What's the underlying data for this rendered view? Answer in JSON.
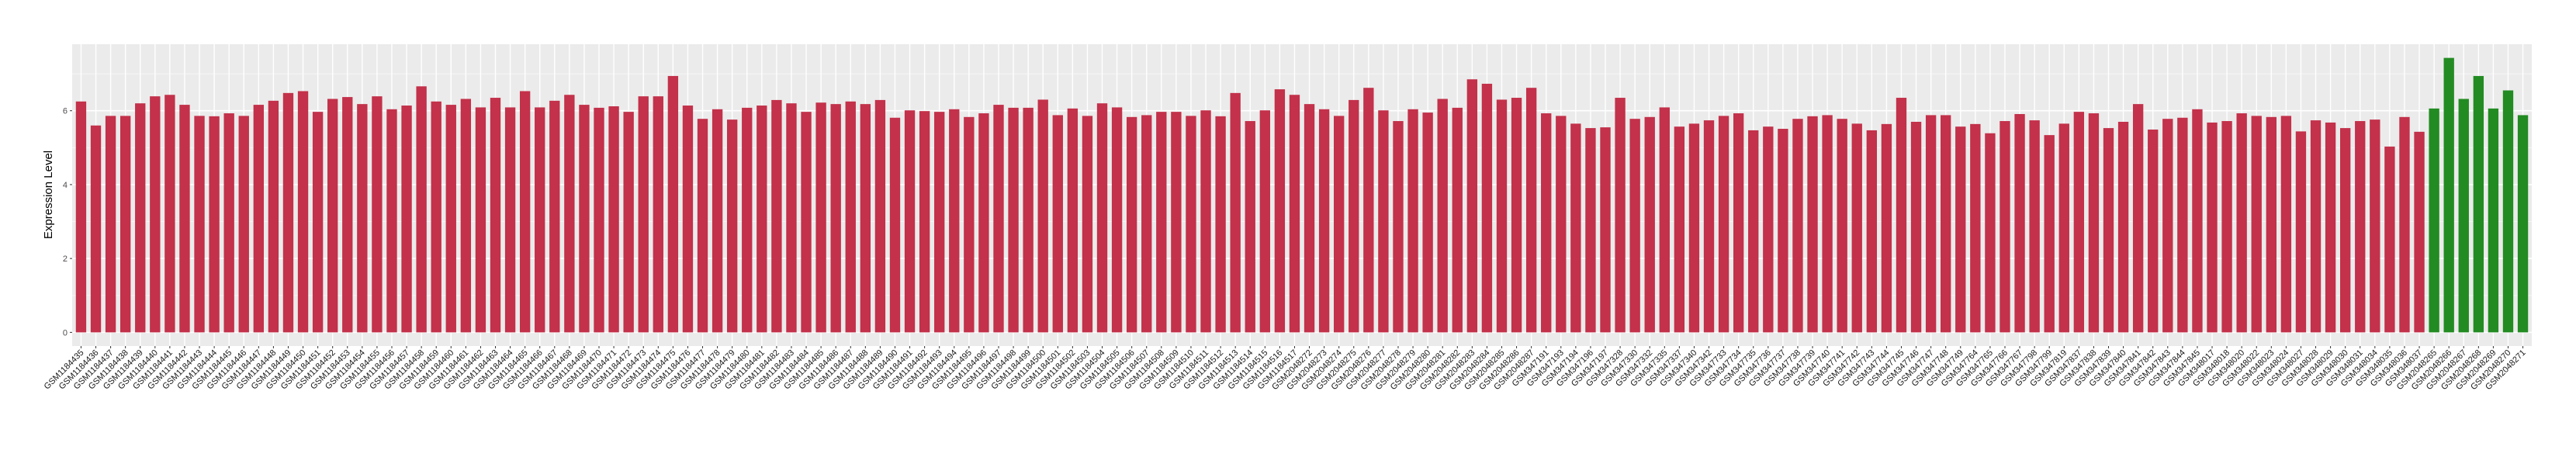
{
  "chart_data": {
    "type": "bar",
    "title": "",
    "xlabel": "",
    "ylabel": "Expression Level",
    "ylim": [
      -0.37,
      7.8
    ],
    "yticks": [
      0,
      2,
      4,
      6
    ],
    "grid": true,
    "legend": "none",
    "colors": {
      "default": "#C3314A",
      "highlight": "#228B22",
      "panel": "#EBEBEB",
      "grid": "#FFFFFF"
    },
    "highlighted_categories": [
      "GSM2048265",
      "GSM2048266",
      "GSM2048267",
      "GSM2048268",
      "GSM2048269",
      "GSM2048270",
      "GSM2048271"
    ],
    "categories": [
      "GSM1184435",
      "GSM1184436",
      "GSM1184437",
      "GSM1184438",
      "GSM1184439",
      "GSM1184440",
      "GSM1184441",
      "GSM1184442",
      "GSM1184443",
      "GSM1184444",
      "GSM1184445",
      "GSM1184446",
      "GSM1184447",
      "GSM1184448",
      "GSM1184449",
      "GSM1184450",
      "GSM1184451",
      "GSM1184452",
      "GSM1184453",
      "GSM1184454",
      "GSM1184455",
      "GSM1184456",
      "GSM1184457",
      "GSM1184458",
      "GSM1184459",
      "GSM1184460",
      "GSM1184461",
      "GSM1184462",
      "GSM1184463",
      "GSM1184464",
      "GSM1184465",
      "GSM1184466",
      "GSM1184467",
      "GSM1184468",
      "GSM1184469",
      "GSM1184470",
      "GSM1184471",
      "GSM1184472",
      "GSM1184473",
      "GSM1184474",
      "GSM1184475",
      "GSM1184476",
      "GSM1184477",
      "GSM1184478",
      "GSM1184479",
      "GSM1184480",
      "GSM1184481",
      "GSM1184482",
      "GSM1184483",
      "GSM1184484",
      "GSM1184485",
      "GSM1184486",
      "GSM1184487",
      "GSM1184488",
      "GSM1184489",
      "GSM1184490",
      "GSM1184491",
      "GSM1184492",
      "GSM1184493",
      "GSM1184494",
      "GSM1184495",
      "GSM1184496",
      "GSM1184497",
      "GSM1184498",
      "GSM1184499",
      "GSM1184500",
      "GSM1184501",
      "GSM1184502",
      "GSM1184503",
      "GSM1184504",
      "GSM1184505",
      "GSM1184506",
      "GSM1184507",
      "GSM1184508",
      "GSM1184509",
      "GSM1184510",
      "GSM1184511",
      "GSM1184512",
      "GSM1184513",
      "GSM1184514",
      "GSM1184515",
      "GSM1184516",
      "GSM1184517",
      "GSM2048272",
      "GSM2048273",
      "GSM2048274",
      "GSM2048275",
      "GSM2048276",
      "GSM2048277",
      "GSM2048278",
      "GSM2048279",
      "GSM2048280",
      "GSM2048281",
      "GSM2048282",
      "GSM2048283",
      "GSM2048284",
      "GSM2048285",
      "GSM2048286",
      "GSM2048287",
      "GSM347191",
      "GSM347193",
      "GSM347194",
      "GSM347196",
      "GSM347197",
      "GSM347328",
      "GSM347330",
      "GSM347332",
      "GSM347335",
      "GSM347337",
      "GSM347340",
      "GSM347342",
      "GSM347733",
      "GSM347734",
      "GSM347735",
      "GSM347736",
      "GSM347737",
      "GSM347738",
      "GSM347739",
      "GSM347740",
      "GSM347741",
      "GSM347742",
      "GSM347743",
      "GSM347744",
      "GSM347745",
      "GSM347746",
      "GSM347747",
      "GSM347748",
      "GSM347749",
      "GSM347764",
      "GSM347765",
      "GSM347766",
      "GSM347767",
      "GSM347798",
      "GSM347799",
      "GSM347819",
      "GSM347837",
      "GSM347838",
      "GSM347839",
      "GSM347840",
      "GSM347841",
      "GSM347842",
      "GSM347843",
      "GSM347844",
      "GSM347845",
      "GSM348017",
      "GSM348018",
      "GSM348020",
      "GSM348022",
      "GSM348023",
      "GSM348024",
      "GSM348027",
      "GSM348028",
      "GSM348029",
      "GSM348030",
      "GSM348031",
      "GSM348034",
      "GSM348035",
      "GSM348036",
      "GSM348037",
      "GSM2048265",
      "GSM2048266",
      "GSM2048267",
      "GSM2048268",
      "GSM2048269",
      "GSM2048270",
      "GSM2048271"
    ],
    "values": [
      6.25,
      5.6,
      5.86,
      5.86,
      6.2,
      6.39,
      6.43,
      6.16,
      5.86,
      5.85,
      5.93,
      5.86,
      6.16,
      6.27,
      6.48,
      6.53,
      5.97,
      6.32,
      6.37,
      6.18,
      6.39,
      6.04,
      6.14,
      6.66,
      6.25,
      6.16,
      6.32,
      6.09,
      6.35,
      6.09,
      6.53,
      6.09,
      6.27,
      6.43,
      6.16,
      6.08,
      6.12,
      5.97,
      6.39,
      6.39,
      6.94,
      6.14,
      5.78,
      6.04,
      5.76,
      6.08,
      6.14,
      6.29,
      6.2,
      5.97,
      6.22,
      6.18,
      6.25,
      6.18,
      6.29,
      5.81,
      6.01,
      5.99,
      5.97,
      6.04,
      5.83,
      5.93,
      6.16,
      6.08,
      6.08,
      6.3,
      5.88,
      6.06,
      5.86,
      6.2,
      6.09,
      5.83,
      5.88,
      5.97,
      5.97,
      5.86,
      6.01,
      5.85,
      6.48,
      5.72,
      6.01,
      6.58,
      6.43,
      6.18,
      6.04,
      5.86,
      6.29,
      6.62,
      6.01,
      5.72,
      6.04,
      5.95,
      6.32,
      6.08,
      6.85,
      6.73,
      6.3,
      6.35,
      6.62,
      5.93,
      5.86,
      5.65,
      5.53,
      5.55,
      6.35,
      5.78,
      5.83,
      6.09,
      5.57,
      5.65,
      5.74,
      5.86,
      5.93,
      5.47,
      5.57,
      5.51,
      5.78,
      5.85,
      5.88,
      5.78,
      5.65,
      5.47,
      5.64,
      6.35,
      5.7,
      5.88,
      5.88,
      5.57,
      5.64,
      5.39,
      5.72,
      5.91,
      5.74,
      5.34,
      5.65,
      5.97,
      5.93,
      5.53,
      5.7,
      6.18,
      5.49,
      5.78,
      5.81,
      6.04,
      5.68,
      5.72,
      5.93,
      5.86,
      5.83,
      5.86,
      5.44,
      5.74,
      5.68,
      5.53,
      5.72,
      5.76,
      5.03,
      5.83,
      5.43,
      6.06,
      7.43,
      6.32,
      6.94,
      6.06,
      6.55,
      5.88
    ]
  }
}
